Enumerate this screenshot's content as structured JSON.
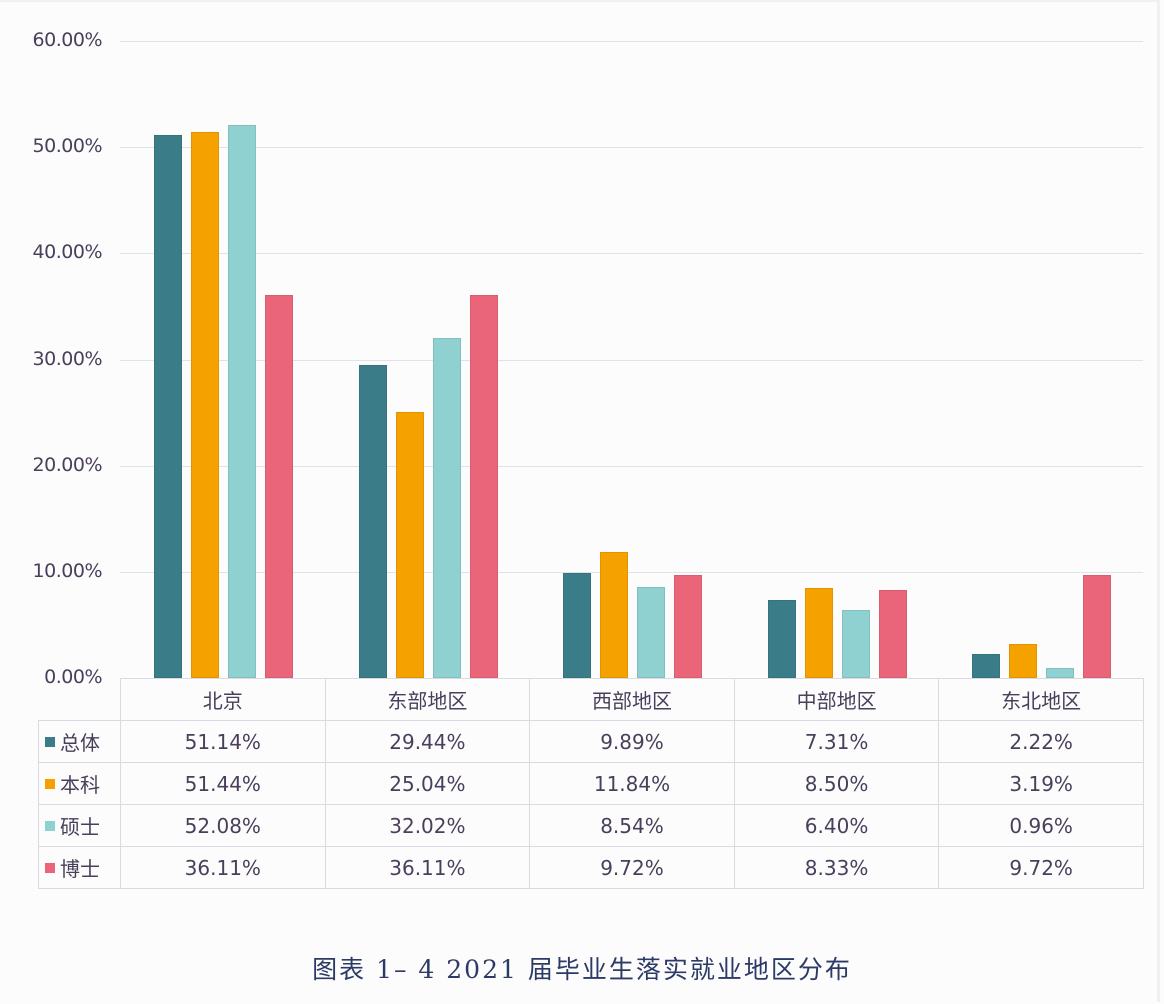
{
  "chart_data": {
    "type": "bar",
    "title": "图表 1-4 2021 届毕业生落实就业地区分布",
    "xlabel": "",
    "ylabel": "",
    "ylim": [
      0,
      60
    ],
    "yticks": [
      "0.00%",
      "10.00%",
      "20.00%",
      "30.00%",
      "40.00%",
      "50.00%",
      "60.00%"
    ],
    "grid": true,
    "legend_position": "table-left",
    "categories": [
      "北京",
      "东部地区",
      "西部地区",
      "中部地区",
      "东北地区"
    ],
    "series": [
      {
        "name": "总体",
        "color": "#3a7d88",
        "values": [
          51.14,
          29.44,
          9.89,
          7.31,
          2.22
        ],
        "labels": [
          "51.14%",
          "29.44%",
          "9.89%",
          "7.31%",
          "2.22%"
        ]
      },
      {
        "name": "本科",
        "color": "#f5a100",
        "values": [
          51.44,
          25.04,
          11.84,
          8.5,
          3.19
        ],
        "labels": [
          "51.44%",
          "25.04%",
          "11.84%",
          "8.50%",
          "3.19%"
        ]
      },
      {
        "name": "硕士",
        "color": "#8fd0d0",
        "values": [
          52.08,
          32.02,
          8.54,
          6.4,
          0.96
        ],
        "labels": [
          "52.08%",
          "32.02%",
          "8.54%",
          "6.40%",
          "0.96%"
        ]
      },
      {
        "name": "博士",
        "color": "#ea6579",
        "values": [
          36.11,
          36.11,
          9.72,
          8.33,
          9.72
        ],
        "labels": [
          "36.11%",
          "36.11%",
          "9.72%",
          "8.33%",
          "9.72%"
        ]
      }
    ]
  },
  "caption": "图表 1– 4  2021 届毕业生落实就业地区分布"
}
